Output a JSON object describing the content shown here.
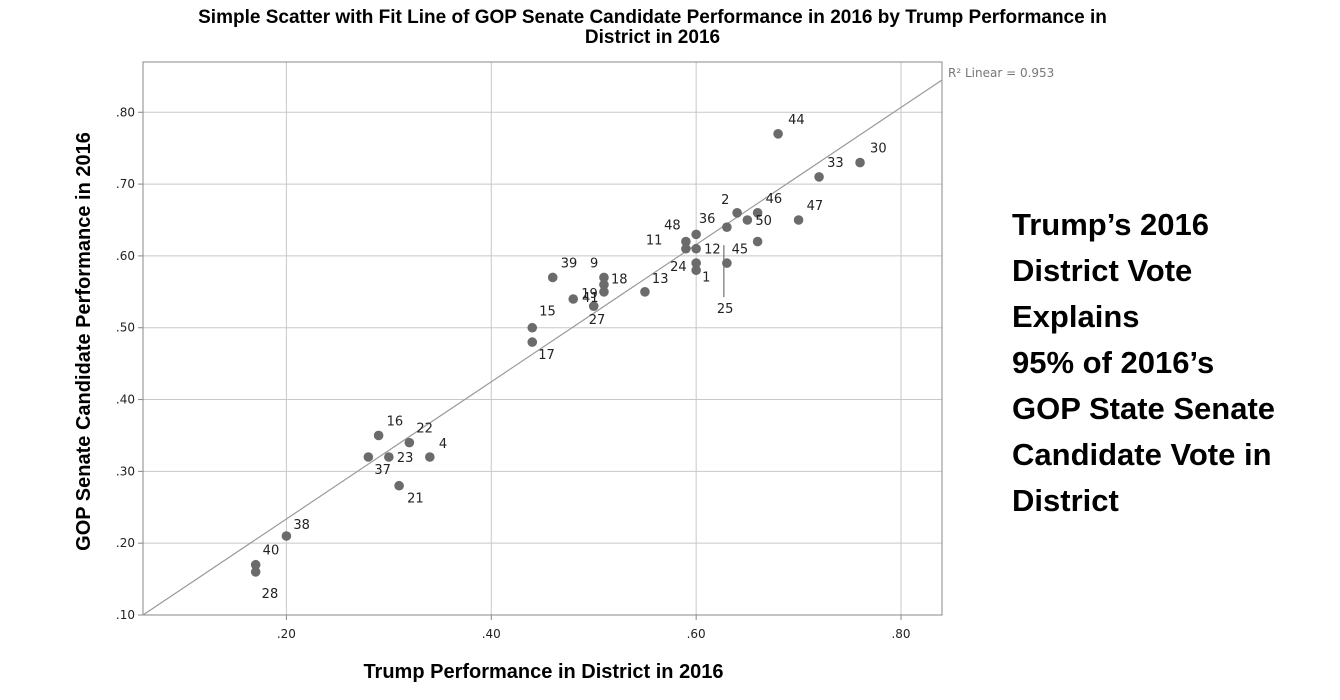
{
  "title_lines": [
    "Simple Scatter with Fit Line of GOP Senate Candidate Performance in 2016 by Trump Performance in",
    "District in 2016"
  ],
  "side_note_lines": [
    "Trump’s 2016",
    "District Vote",
    "Explains",
    "95% of 2016’s",
    "GOP State Senate",
    "Candidate Vote in",
    "District"
  ],
  "chart_data": {
    "type": "scatter",
    "xlabel": "Trump Performance in District in 2016",
    "ylabel": "GOP Senate Candidate Performance in 2016",
    "xlim": [
      0.06,
      0.84
    ],
    "ylim": [
      0.1,
      0.87
    ],
    "x_ticks": [
      0.2,
      0.4,
      0.6,
      0.8
    ],
    "x_tick_labels": [
      ".20",
      ".40",
      ".60",
      ".80"
    ],
    "y_ticks": [
      0.1,
      0.2,
      0.3,
      0.4,
      0.5,
      0.6,
      0.7,
      0.8
    ],
    "y_tick_labels": [
      ".10",
      ".20",
      ".30",
      ".40",
      ".50",
      ".60",
      ".70",
      ".80"
    ],
    "grid": true,
    "fit_line": {
      "label": "R² Linear = 0.953",
      "x": [
        0.06,
        0.84
      ],
      "y": [
        0.1,
        0.845
      ]
    },
    "marker_color": "#6b6b6b",
    "line_color": "#999999",
    "grid_color": "#c8c8c8",
    "points": [
      {
        "label": "44",
        "x": 0.68,
        "y": 0.77
      },
      {
        "label": "30",
        "x": 0.76,
        "y": 0.73
      },
      {
        "label": "33",
        "x": 0.72,
        "y": 0.71
      },
      {
        "label": "2",
        "x": 0.64,
        "y": 0.66
      },
      {
        "label": "46",
        "x": 0.66,
        "y": 0.66
      },
      {
        "label": "36",
        "x": 0.63,
        "y": 0.64
      },
      {
        "label": "50",
        "x": 0.65,
        "y": 0.65
      },
      {
        "label": "47",
        "x": 0.7,
        "y": 0.65
      },
      {
        "label": "45",
        "x": 0.66,
        "y": 0.62
      },
      {
        "label": "48",
        "x": 0.6,
        "y": 0.63
      },
      {
        "label": "11",
        "x": 0.59,
        "y": 0.62
      },
      {
        "label": "",
        "x": 0.59,
        "y": 0.61
      },
      {
        "label": "12",
        "x": 0.6,
        "y": 0.61
      },
      {
        "label": "24",
        "x": 0.6,
        "y": 0.59
      },
      {
        "label": "1",
        "x": 0.6,
        "y": 0.58
      },
      {
        "label": "25",
        "x": 0.63,
        "y": 0.59
      },
      {
        "label": "13",
        "x": 0.55,
        "y": 0.55
      },
      {
        "label": "39",
        "x": 0.46,
        "y": 0.57
      },
      {
        "label": "9",
        "x": 0.51,
        "y": 0.57
      },
      {
        "label": "18",
        "x": 0.51,
        "y": 0.56
      },
      {
        "label": "41",
        "x": 0.51,
        "y": 0.55
      },
      {
        "label": "19",
        "x": 0.48,
        "y": 0.54
      },
      {
        "label": "27",
        "x": 0.5,
        "y": 0.53
      },
      {
        "label": "15",
        "x": 0.44,
        "y": 0.5
      },
      {
        "label": "17",
        "x": 0.44,
        "y": 0.48
      },
      {
        "label": "16",
        "x": 0.29,
        "y": 0.35
      },
      {
        "label": "22",
        "x": 0.32,
        "y": 0.34
      },
      {
        "label": "4",
        "x": 0.34,
        "y": 0.32
      },
      {
        "label": "23",
        "x": 0.3,
        "y": 0.32
      },
      {
        "label": "37",
        "x": 0.28,
        "y": 0.32
      },
      {
        "label": "21",
        "x": 0.31,
        "y": 0.28
      },
      {
        "label": "38",
        "x": 0.2,
        "y": 0.21
      },
      {
        "label": "40",
        "x": 0.17,
        "y": 0.17
      },
      {
        "label": "28",
        "x": 0.17,
        "y": 0.16
      }
    ]
  }
}
